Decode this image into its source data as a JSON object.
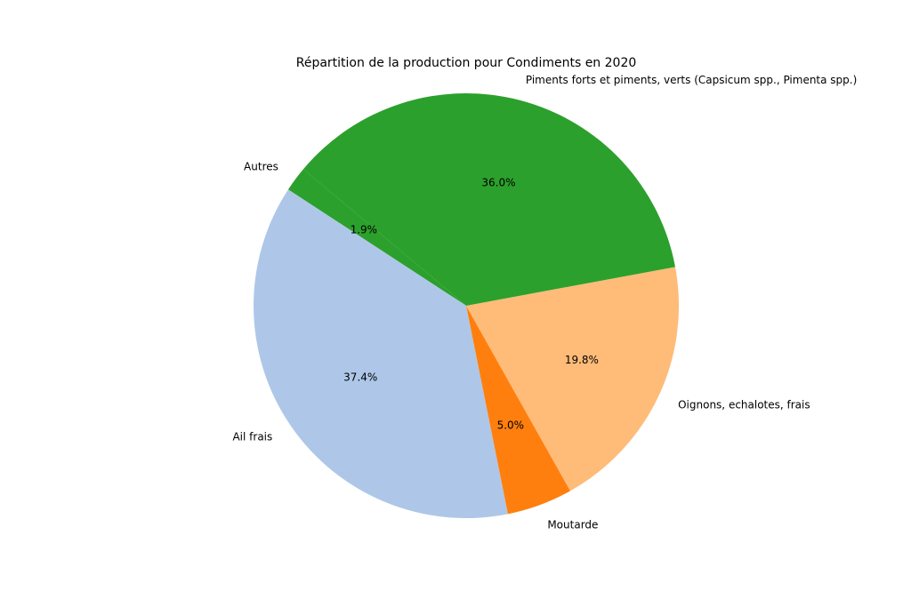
{
  "chart_data": {
    "type": "pie",
    "title": "Répartition de la production pour Condiments en 2020",
    "start_angle_deg": 140,
    "direction": "counterclockwise",
    "slices": [
      {
        "label": "Autres",
        "value": 1.9,
        "pct_label": "1.9%",
        "color": "#2ca02c"
      },
      {
        "label": "Ail frais",
        "value": 37.4,
        "pct_label": "37.4%",
        "color": "#aec7e8"
      },
      {
        "label": "Moutarde",
        "value": 5.0,
        "pct_label": "5.0%",
        "color": "#ff7f0e"
      },
      {
        "label": "Oignons, echalotes, frais",
        "value": 19.8,
        "pct_label": "19.8%",
        "color": "#ffbb78"
      },
      {
        "label": "Piments forts et piments, verts (Capsicum spp., Pimenta spp.)",
        "value": 36.0,
        "pct_label": "36.0%",
        "color": "#2ca02c"
      }
    ]
  }
}
